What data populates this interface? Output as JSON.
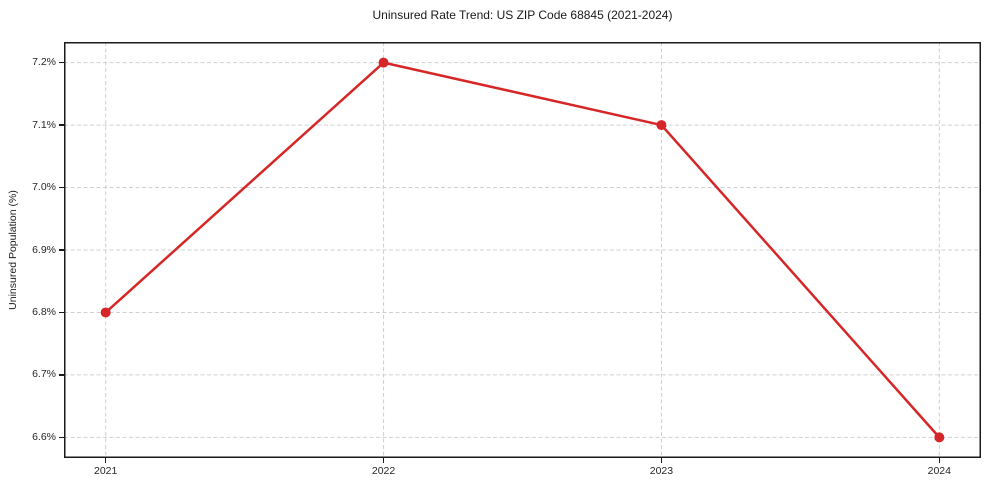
{
  "chart_data": {
    "type": "line",
    "title": "Uninsured Rate Trend: US ZIP Code 68845 (2021-2024)",
    "xlabel": "",
    "ylabel": "Uninsured Population (%)",
    "x": [
      2021,
      2022,
      2023,
      2024
    ],
    "x_tick_labels": [
      "2021",
      "2022",
      "2023",
      "2024"
    ],
    "series": [
      {
        "values": [
          6.8,
          7.2,
          7.1,
          6.6
        ],
        "color": "#d62728",
        "marker": "circle",
        "line_width": 2.5,
        "marker_radius": 5
      }
    ],
    "y_ticks": [
      6.6,
      6.7,
      6.8,
      6.9,
      7.0,
      7.1,
      7.2
    ],
    "y_tick_labels": [
      "6.6%",
      "6.7%",
      "6.8%",
      "6.9%",
      "7.0%",
      "7.1%",
      "7.2%"
    ],
    "xlim": [
      2020.85,
      2024.15
    ],
    "ylim": [
      6.567,
      7.233
    ],
    "grid": true,
    "grid_style": "dashed",
    "grid_color": "#d0d0d0",
    "border_color": "#1a1a1a",
    "legend_position": "none"
  }
}
